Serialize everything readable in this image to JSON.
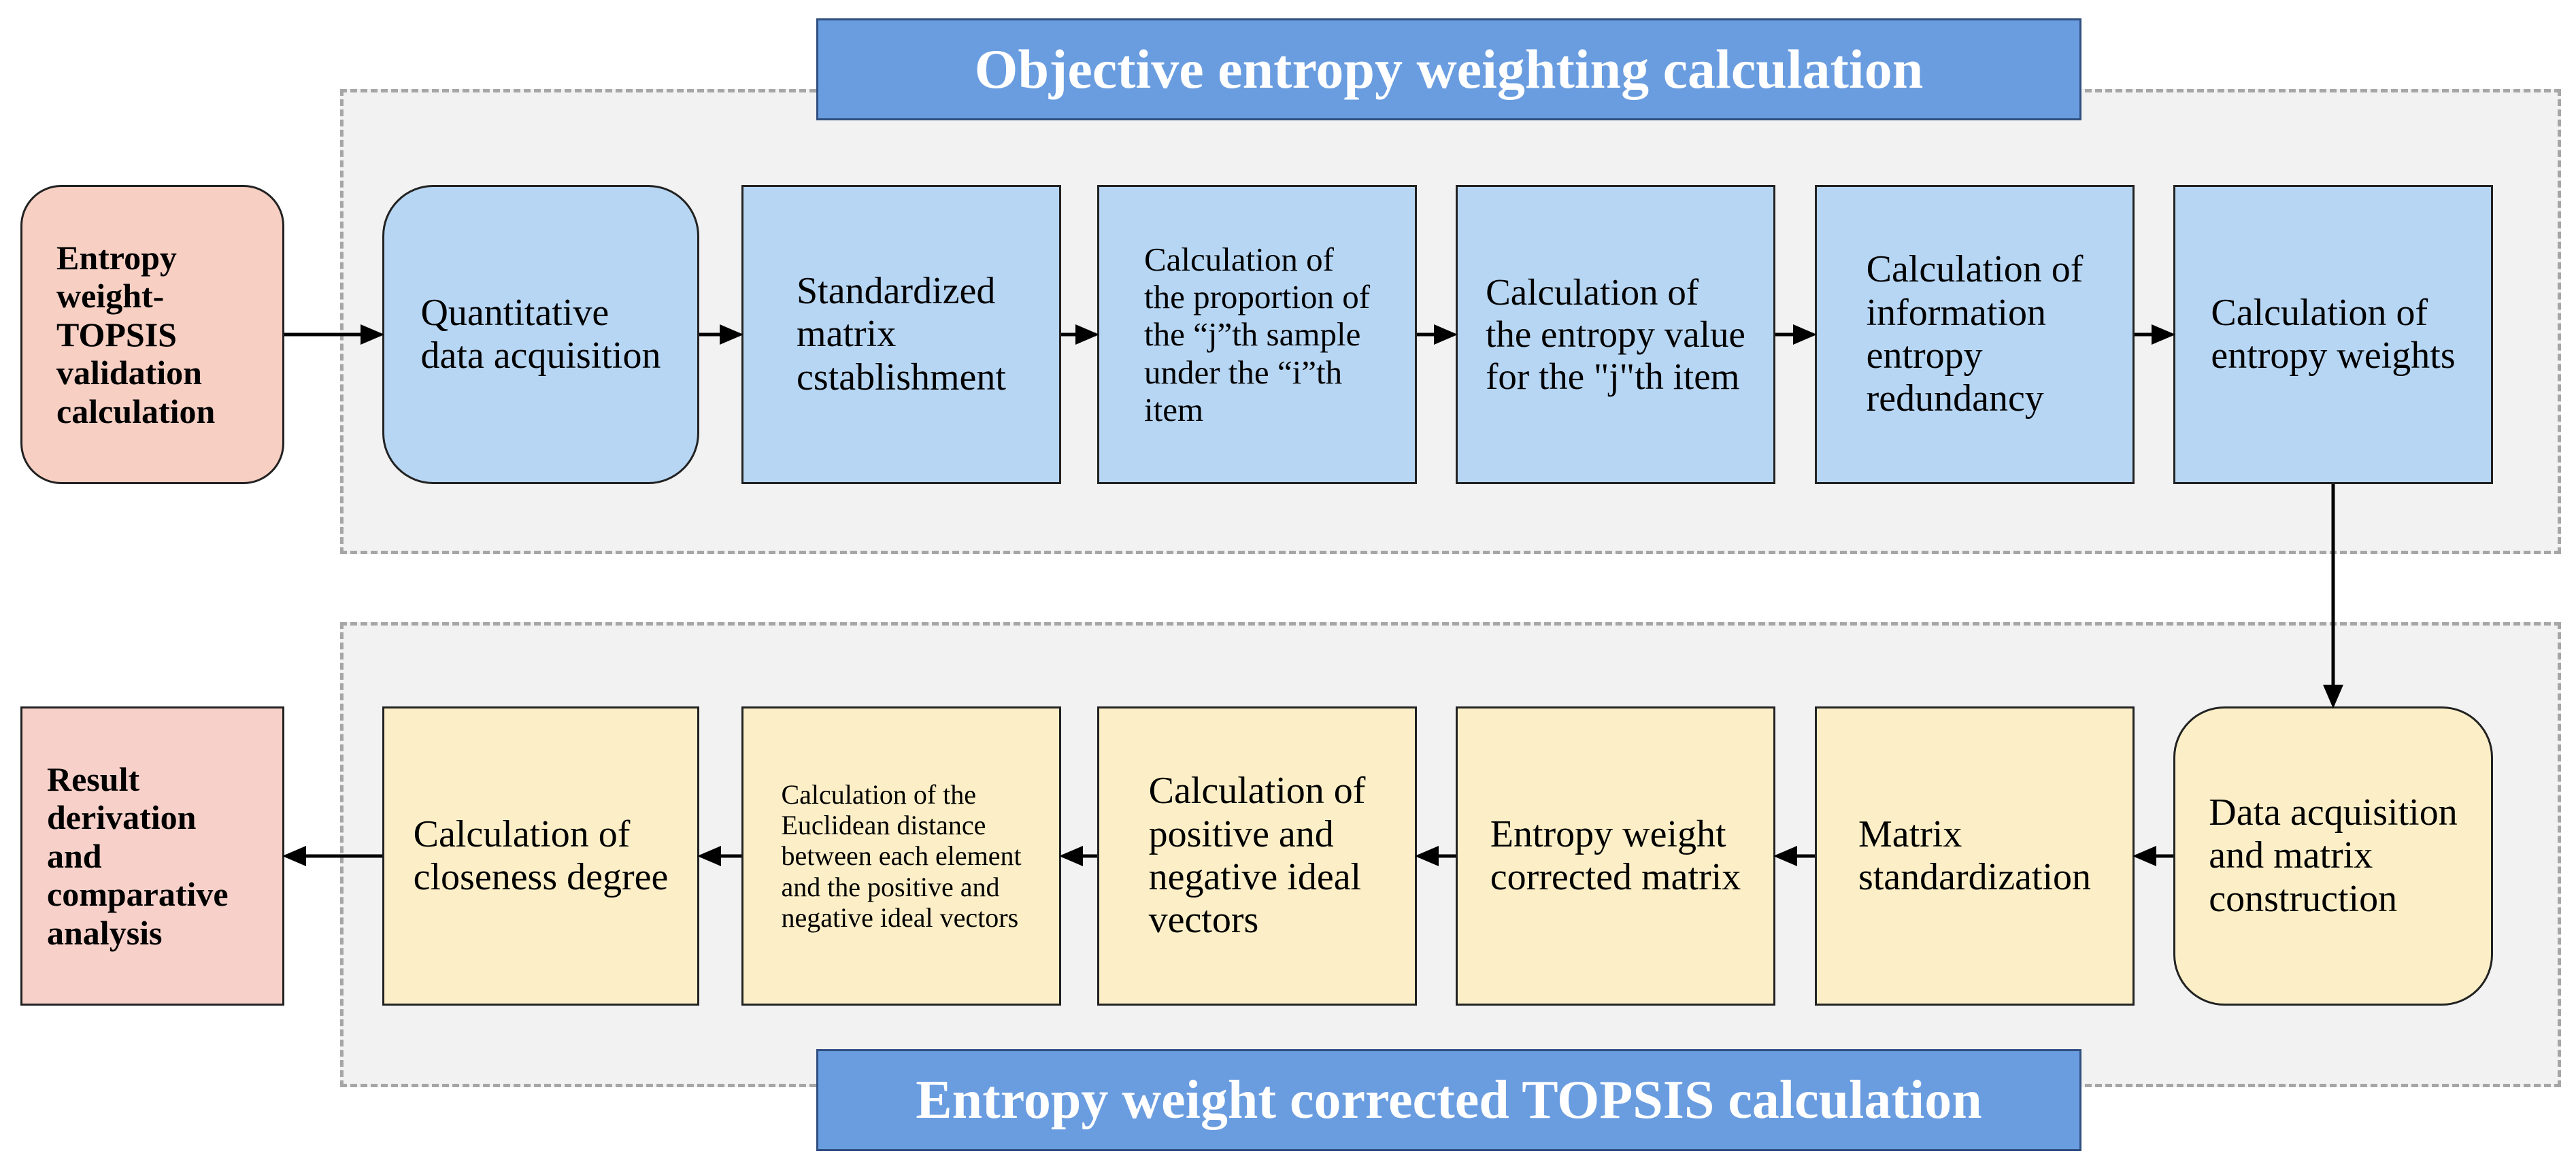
{
  "top_section": {
    "title": "Objective entropy weighting calculation"
  },
  "bottom_section": {
    "title": "Entropy weight corrected TOPSIS calculation"
  },
  "start": {
    "label": "Entropy\nweight-\nTOPSIS\nvalidation\ncalculation"
  },
  "top_steps": [
    {
      "label": "Quantitative\ndata acquisition"
    },
    {
      "label": "Standardized\nmatrix\ncstablishment"
    },
    {
      "label": "Calculation of\nthe proportion of\nthe “j”th  sample\nunder the “i”th\nitem"
    },
    {
      "label": "Calculation of\nthe entropy value\nfor the \"j\"th item"
    },
    {
      "label": "Calculation of\ninformation\nentropy\nredundancy"
    },
    {
      "label": "Calculation of\nentropy weights"
    }
  ],
  "bottom_steps": [
    {
      "label": "Data acquisition\nand matrix\nconstruction"
    },
    {
      "label": "Matrix\nstandardization"
    },
    {
      "label": "Entropy weight\ncorrected matrix"
    },
    {
      "label": "Calculation of\npositive and\nnegative ideal\nvectors"
    },
    {
      "label": "Calculation of the\nEuclidean distance\nbetween each element\nand the positive and\nnegative ideal vectors"
    },
    {
      "label": "Calculation of\ncloseness degree"
    }
  ],
  "end": {
    "label": "Result\nderivation\nand\ncomparative\nanalysis"
  },
  "colors": {
    "banner": "#6a9de0",
    "top_step": "#b7d6f3",
    "bottom_step": "#fcefc7",
    "endpoint": "#f6d0c9"
  }
}
